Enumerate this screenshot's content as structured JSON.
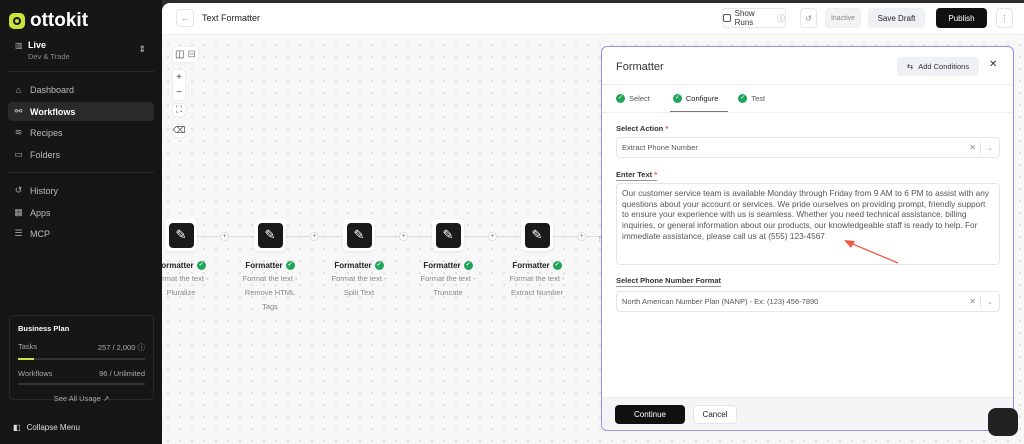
{
  "brand": {
    "name": "ottokit",
    "accent": "#c9e53a"
  },
  "env": {
    "title": "Live",
    "subtitle": "Dev & Trade"
  },
  "nav": [
    {
      "label": "Dashboard",
      "icon": "home-icon"
    },
    {
      "label": "Workflows",
      "icon": "workflow-icon",
      "active": true
    },
    {
      "label": "Recipes",
      "icon": "layers-icon"
    },
    {
      "label": "Folders",
      "icon": "folder-icon"
    },
    {
      "label": "History",
      "icon": "history-icon"
    },
    {
      "label": "Apps",
      "icon": "grid-icon"
    },
    {
      "label": "MCP",
      "icon": "server-icon"
    }
  ],
  "plan": {
    "title": "Business Plan",
    "tasks_label": "Tasks",
    "tasks_value": "257 / 2,000",
    "tasks_progress": 0.1285,
    "workflows_label": "Workflows",
    "workflows_value": "96 / Unlimited",
    "see_all": "See All Usage ↗"
  },
  "collapse": "Collapse Menu",
  "header": {
    "title": "Text Formatter",
    "show_runs": "Show Runs",
    "status": "Inactive",
    "save_draft": "Save Draft",
    "publish": "Publish"
  },
  "nodes": [
    {
      "name": "Formatter",
      "desc1": "Format the text -",
      "desc2": "Pluralize"
    },
    {
      "name": "Formatter",
      "desc1": "Format the text -",
      "desc2": "Remove HTML",
      "desc3": "Tags"
    },
    {
      "name": "Formatter",
      "desc1": "Format the text -",
      "desc2": "Split Text"
    },
    {
      "name": "Formatter",
      "desc1": "Format the text -",
      "desc2": "Truncate"
    },
    {
      "name": "Formatter",
      "desc1": "Format the text -",
      "desc2": "Extract Number"
    }
  ],
  "panel": {
    "title": "Formatter",
    "add_conditions": "Add Conditions",
    "tabs": [
      {
        "label": "Select"
      },
      {
        "label": "Configure",
        "active": true
      },
      {
        "label": "Test"
      }
    ],
    "select_action_label": "Select Action",
    "select_action_value": "Extract Phone Number",
    "enter_text_label": "Enter Text",
    "enter_text_value": "Our customer service team is available Monday through Friday from 9 AM to 6 PM to assist with any questions about your account or services. We pride ourselves on providing prompt, friendly support to ensure your experience with us is seamless. Whether you need technical assistance, billing inquiries, or general information about our products, our knowledgeable staff is ready to help. For immediate assistance, please call us at (555) 123-4567",
    "format_label": "Select Phone Number Format",
    "format_value": "North American Number Plan (NANP) - Ex: (123) 456-7890",
    "continue": "Continue",
    "cancel": "Cancel"
  }
}
